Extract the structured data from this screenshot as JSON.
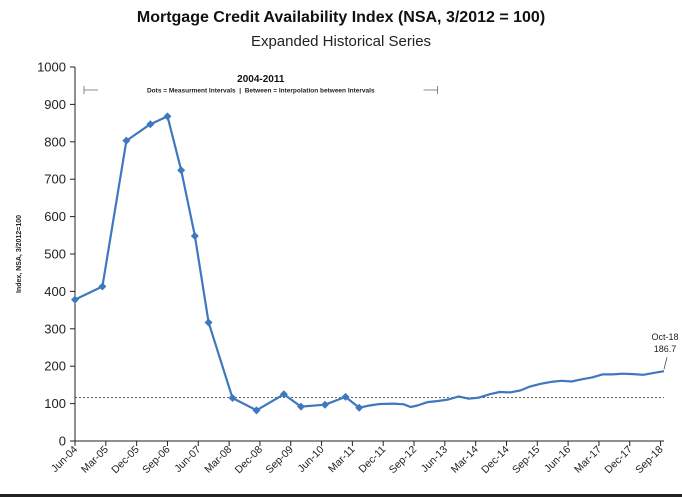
{
  "chart_data": {
    "type": "line",
    "title": "Mortgage Credit Availability Index (NSA, 3/2012 = 100)",
    "subtitle": "Expanded Historical Series",
    "ylabel": "Index, NSA, 3/2012=100",
    "xlabel": "",
    "ylim": [
      0,
      1000
    ],
    "yticks": [
      0,
      100,
      200,
      300,
      400,
      500,
      600,
      700,
      800,
      900,
      1000
    ],
    "xlim": [
      "2004-06",
      "2018-10"
    ],
    "xticks": [
      "Jun-04",
      "Mar-05",
      "Dec-05",
      "Sep-06",
      "Jun-07",
      "Mar-08",
      "Dec-08",
      "Sep-09",
      "Jun-10",
      "Mar-11",
      "Dec-11",
      "Sep-12",
      "Jun-13",
      "Mar-14",
      "Dec-14",
      "Sep-15",
      "Jun-16",
      "Mar-17",
      "Dec-17",
      "Sep-18"
    ],
    "grid": false,
    "color": "#3f78be",
    "reference_line": {
      "value": 116,
      "style": "dashed"
    },
    "bracket": {
      "title": "2004-2011",
      "note": "Dots = Measurment Intervals  |  Between = Interpolation between Intervals",
      "start": "2004-06",
      "end": "2013-03"
    },
    "annotation": {
      "label": "Oct-18",
      "value_label": "186.7",
      "x": "2018-10",
      "y": 186.7
    },
    "series": [
      {
        "markers": [
          {
            "x": "2004-06",
            "y": 378
          },
          {
            "x": "2005-02",
            "y": 413
          },
          {
            "x": "2005-09",
            "y": 803
          },
          {
            "x": "2006-04",
            "y": 847
          },
          {
            "x": "2006-09",
            "y": 868
          },
          {
            "x": "2007-01",
            "y": 724
          },
          {
            "x": "2007-05",
            "y": 548
          },
          {
            "x": "2007-09",
            "y": 317
          },
          {
            "x": "2008-04",
            "y": 115
          },
          {
            "x": "2008-11",
            "y": 82
          },
          {
            "x": "2009-07",
            "y": 125
          },
          {
            "x": "2009-12",
            "y": 92
          },
          {
            "x": "2010-07",
            "y": 97
          },
          {
            "x": "2011-01",
            "y": 118
          },
          {
            "x": "2011-05",
            "y": 89
          }
        ],
        "points": [
          {
            "x": "2004-06",
            "y": 378
          },
          {
            "x": "2005-02",
            "y": 413
          },
          {
            "x": "2005-09",
            "y": 803
          },
          {
            "x": "2006-04",
            "y": 847
          },
          {
            "x": "2006-09",
            "y": 868
          },
          {
            "x": "2007-01",
            "y": 724
          },
          {
            "x": "2007-05",
            "y": 548
          },
          {
            "x": "2007-09",
            "y": 317
          },
          {
            "x": "2008-04",
            "y": 115
          },
          {
            "x": "2008-11",
            "y": 82
          },
          {
            "x": "2009-07",
            "y": 125
          },
          {
            "x": "2009-12",
            "y": 92
          },
          {
            "x": "2010-07",
            "y": 97
          },
          {
            "x": "2011-01",
            "y": 118
          },
          {
            "x": "2011-05",
            "y": 89
          },
          {
            "x": "2011-08",
            "y": 95
          },
          {
            "x": "2011-11",
            "y": 99
          },
          {
            "x": "2012-03",
            "y": 100
          },
          {
            "x": "2012-06",
            "y": 98
          },
          {
            "x": "2012-08",
            "y": 91
          },
          {
            "x": "2012-10",
            "y": 95
          },
          {
            "x": "2013-01",
            "y": 104
          },
          {
            "x": "2013-04",
            "y": 107
          },
          {
            "x": "2013-07",
            "y": 111
          },
          {
            "x": "2013-10",
            "y": 119
          },
          {
            "x": "2014-01",
            "y": 113
          },
          {
            "x": "2014-04",
            "y": 116
          },
          {
            "x": "2014-07",
            "y": 125
          },
          {
            "x": "2014-10",
            "y": 131
          },
          {
            "x": "2015-01",
            "y": 130
          },
          {
            "x": "2015-04",
            "y": 135
          },
          {
            "x": "2015-07",
            "y": 146
          },
          {
            "x": "2015-10",
            "y": 153
          },
          {
            "x": "2016-01",
            "y": 158
          },
          {
            "x": "2016-04",
            "y": 161
          },
          {
            "x": "2016-07",
            "y": 159
          },
          {
            "x": "2016-10",
            "y": 165
          },
          {
            "x": "2017-01",
            "y": 170
          },
          {
            "x": "2017-04",
            "y": 178
          },
          {
            "x": "2017-07",
            "y": 178
          },
          {
            "x": "2017-10",
            "y": 180
          },
          {
            "x": "2018-01",
            "y": 179
          },
          {
            "x": "2018-04",
            "y": 177
          },
          {
            "x": "2018-07",
            "y": 182
          },
          {
            "x": "2018-10",
            "y": 186.7
          }
        ]
      }
    ]
  }
}
